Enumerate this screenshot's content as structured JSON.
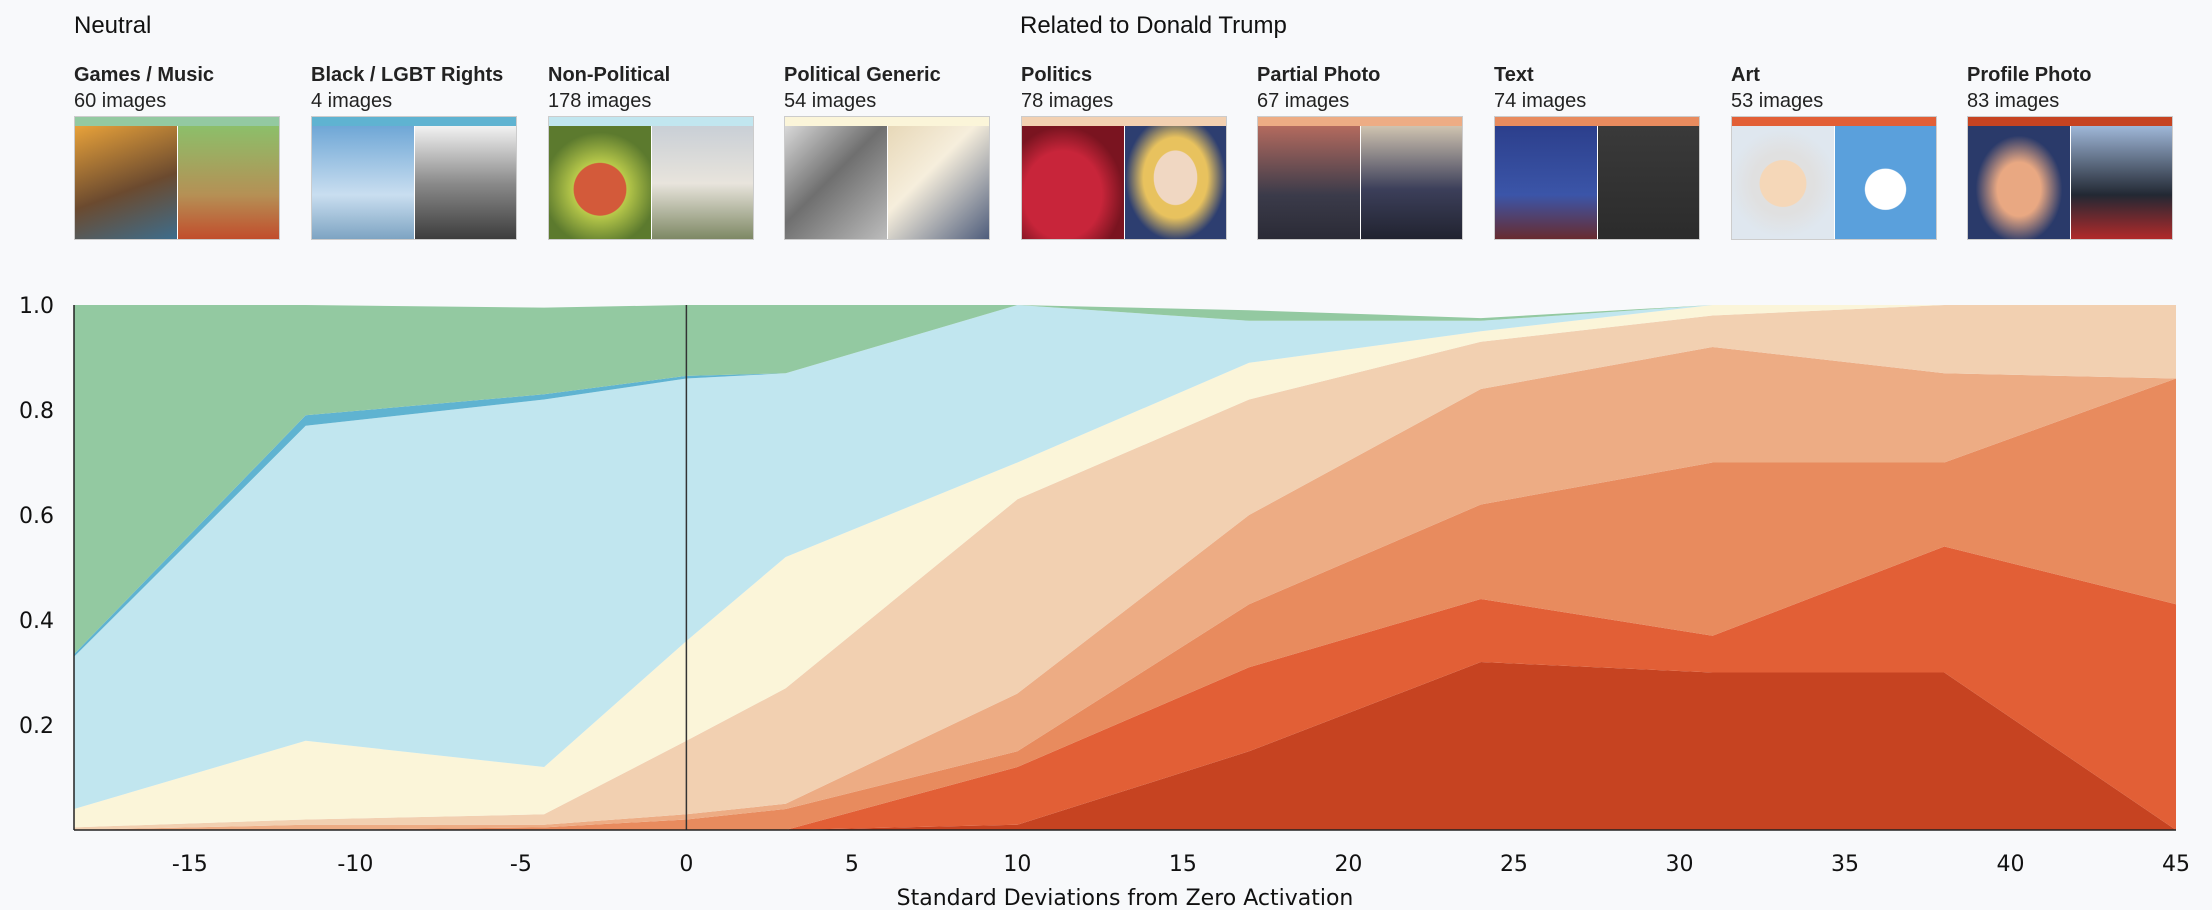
{
  "groups": [
    {
      "heading": "Neutral"
    },
    {
      "heading": "Related to Donald Trump"
    }
  ],
  "categories": [
    {
      "name": "Games / Music",
      "count": "60 images",
      "color": "#93c9a1"
    },
    {
      "name": "Black / LGBT Rights",
      "count": "4 images",
      "color": "#5fb3d1"
    },
    {
      "name": "Non-Political",
      "count": "178 images",
      "color": "#c1e6ef"
    },
    {
      "name": "Political Generic",
      "count": "54 images",
      "color": "#fbf5d9"
    },
    {
      "name": "Politics",
      "count": "78 images",
      "color": "#f2d0b1"
    },
    {
      "name": "Partial Photo",
      "count": "67 images",
      "color": "#edac84"
    },
    {
      "name": "Text",
      "count": "74 images",
      "color": "#e88b5e"
    },
    {
      "name": "Art",
      "count": "53 images",
      "color": "#e25f36"
    },
    {
      "name": "Profile Photo",
      "count": "83 images",
      "color": "#c64321"
    }
  ],
  "thumbnail_icons": [
    [
      "fortnite-characters-photo",
      "game-landscape-photo"
    ],
    [
      "rainbow-flag-photo",
      "civil-rights-speech-photo"
    ],
    [
      "apple-photo",
      "alpaca-photo"
    ],
    [
      "warplanes-photo",
      "flag-sunburst-photo"
    ],
    [
      "maga-hat-photo",
      "woman-portrait-photo"
    ],
    [
      "group-photo",
      "handshake-photo"
    ],
    [
      "trump-pence-sign-photo",
      "trump-shirt-photo"
    ],
    [
      "trump-caricature-art",
      "twitter-bird-art"
    ],
    [
      "trump-portrait-photo",
      "trump-speaking-photo"
    ]
  ],
  "chart_data": {
    "type": "area",
    "stacked": true,
    "normalized": true,
    "x": [
      -18.5,
      -11.5,
      -4.3,
      0,
      3,
      10,
      17,
      24,
      31,
      38,
      45
    ],
    "series": [
      {
        "name": "Profile Photo",
        "values": [
          0,
          0,
          0,
          0,
          0,
          0.01,
          0.15,
          0.32,
          0.3,
          0.3,
          0
        ]
      },
      {
        "name": "Art",
        "values": [
          0,
          0,
          0,
          0,
          0,
          0.11,
          0.16,
          0.12,
          0.07,
          0.24,
          0.43
        ]
      },
      {
        "name": "Text",
        "values": [
          0,
          0,
          0.005,
          0.02,
          0.04,
          0.03,
          0.12,
          0.18,
          0.33,
          0.16,
          0.43
        ]
      },
      {
        "name": "Partial Photo",
        "values": [
          0,
          0.01,
          0.005,
          0.01,
          0.01,
          0.11,
          0.17,
          0.22,
          0.22,
          0.17,
          0
        ]
      },
      {
        "name": "Politics",
        "values": [
          0.005,
          0.01,
          0.02,
          0.14,
          0.22,
          0.37,
          0.22,
          0.09,
          0.06,
          0.13,
          0.14
        ]
      },
      {
        "name": "Political Generic",
        "values": [
          0.035,
          0.15,
          0.09,
          0.19,
          0.25,
          0.07,
          0.07,
          0.02,
          0.02,
          0,
          0
        ]
      },
      {
        "name": "Non-Political",
        "values": [
          0.29,
          0.6,
          0.7,
          0.5,
          0.35,
          0.34,
          0.08,
          0.02,
          0,
          0,
          0
        ]
      },
      {
        "name": "Black / LGBT Rights",
        "values": [
          0.005,
          0.02,
          0.01,
          0.005,
          0,
          0,
          0,
          0,
          0.005,
          0,
          0
        ]
      },
      {
        "name": "Games / Music",
        "values": [
          0.665,
          0.21,
          0.165,
          0.135,
          0.13,
          0.02,
          0.02,
          0.005,
          0,
          0,
          0
        ]
      }
    ],
    "xlabel": "Standard Deviations from Zero Activation",
    "ylabel": "",
    "xlim": [
      -18.5,
      45
    ],
    "ylim": [
      0,
      1
    ],
    "x_ticks": [
      -15,
      -10,
      -5,
      0,
      5,
      10,
      15,
      20,
      25,
      30,
      35,
      40,
      45
    ],
    "x_tick_labels": [
      "-15",
      "-10",
      "-5",
      "0",
      "5",
      "10",
      "15",
      "20",
      "25",
      "30",
      "35",
      "40",
      "45"
    ],
    "y_ticks": [
      0.2,
      0.4,
      0.6,
      0.8,
      1.0
    ],
    "y_tick_labels": [
      "0.2",
      "0.4",
      "0.6",
      "0.8",
      "1.0"
    ],
    "reference_line_x": 0,
    "grid": false
  }
}
